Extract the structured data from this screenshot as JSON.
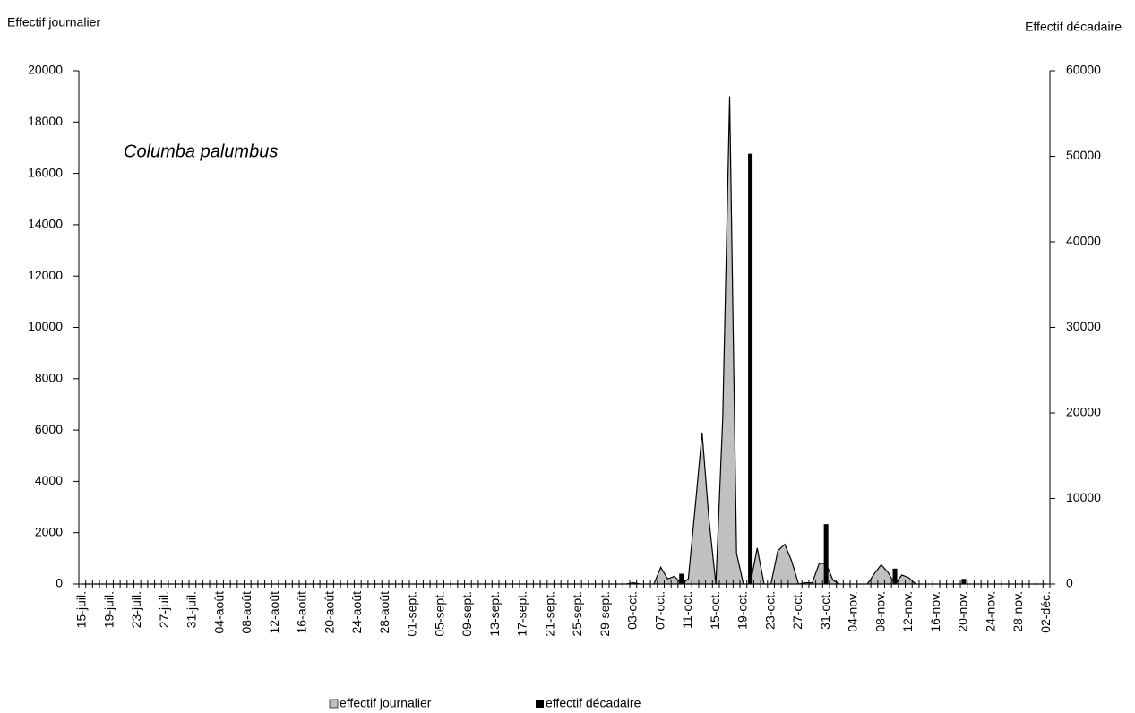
{
  "chart_data": {
    "type": "area-bar",
    "ylabel": "Effectif journalier",
    "y2label": "Effectif décadaire",
    "annotation": "Columba palumbus",
    "categories": [
      "15-juil.",
      null,
      null,
      null,
      "19-juil.",
      null,
      null,
      null,
      "23-juil.",
      null,
      null,
      null,
      "27-juil.",
      null,
      null,
      null,
      "31-juil.",
      null,
      null,
      null,
      "04-août",
      null,
      null,
      null,
      "08-août",
      null,
      null,
      null,
      "12-août",
      null,
      null,
      null,
      "16-août",
      null,
      null,
      null,
      "20-août",
      null,
      null,
      null,
      "24-août",
      null,
      null,
      null,
      "28-août",
      null,
      null,
      null,
      "01-sept.",
      null,
      null,
      null,
      "05-sept.",
      null,
      null,
      null,
      "09-sept.",
      null,
      null,
      null,
      "13-sept.",
      null,
      null,
      null,
      "17-sept.",
      null,
      null,
      null,
      "21-sept.",
      null,
      null,
      null,
      "25-sept.",
      null,
      null,
      null,
      "29-sept.",
      null,
      null,
      null,
      "03-oct.",
      null,
      null,
      null,
      "07-oct.",
      null,
      null,
      null,
      "11-oct.",
      null,
      null,
      null,
      "15-oct.",
      null,
      null,
      null,
      "19-oct.",
      null,
      null,
      null,
      "23-oct.",
      null,
      null,
      null,
      "27-oct.",
      null,
      null,
      null,
      "31-oct.",
      null,
      null,
      null,
      "04-nov.",
      null,
      null,
      null,
      "08-nov.",
      null,
      null,
      null,
      "12-nov.",
      null,
      null,
      null,
      "16-nov.",
      null,
      null,
      null,
      "20-nov.",
      null,
      null,
      null,
      "24-nov.",
      null,
      null,
      null,
      "28-nov.",
      null,
      null,
      null,
      "02-déc."
    ],
    "series": [
      {
        "name": "effectif journalier",
        "kind": "area",
        "color": "#c0c0c0",
        "values": [
          0,
          0,
          0,
          0,
          0,
          0,
          0,
          0,
          0,
          0,
          0,
          0,
          0,
          0,
          0,
          0,
          0,
          0,
          0,
          0,
          0,
          0,
          0,
          0,
          0,
          0,
          0,
          0,
          0,
          0,
          0,
          0,
          0,
          0,
          0,
          0,
          0,
          0,
          0,
          0,
          0,
          0,
          0,
          0,
          0,
          0,
          0,
          0,
          0,
          0,
          0,
          0,
          0,
          0,
          0,
          0,
          0,
          0,
          0,
          0,
          0,
          0,
          0,
          0,
          0,
          0,
          0,
          0,
          0,
          0,
          0,
          0,
          0,
          0,
          0,
          0,
          0,
          0,
          0,
          0,
          50,
          0,
          0,
          0,
          650,
          200,
          300,
          0,
          200,
          3000,
          5900,
          2500,
          0,
          6500,
          19000,
          1200,
          0,
          0,
          1400,
          0,
          0,
          1300,
          1550,
          900,
          0,
          50,
          50,
          800,
          800,
          150,
          0,
          0,
          0,
          0,
          0,
          400,
          750,
          450,
          0,
          350,
          250,
          0,
          0,
          0,
          0,
          0,
          0,
          0,
          0,
          0,
          0,
          0,
          0,
          0,
          0,
          0,
          0,
          0,
          0,
          0,
          0
        ]
      },
      {
        "name": "effectif décadaire",
        "kind": "bar",
        "axis": "y2",
        "color": "#000000",
        "values": [
          null,
          null,
          null,
          null,
          null,
          null,
          null,
          null,
          null,
          null,
          null,
          null,
          null,
          null,
          null,
          null,
          null,
          null,
          null,
          null,
          null,
          null,
          null,
          null,
          null,
          null,
          null,
          null,
          null,
          null,
          null,
          null,
          null,
          null,
          null,
          null,
          null,
          null,
          null,
          null,
          null,
          null,
          null,
          null,
          null,
          null,
          null,
          null,
          null,
          null,
          null,
          null,
          null,
          null,
          null,
          null,
          null,
          null,
          null,
          null,
          null,
          null,
          null,
          null,
          null,
          null,
          null,
          null,
          null,
          null,
          null,
          null,
          null,
          null,
          null,
          null,
          null,
          null,
          null,
          null,
          null,
          null,
          null,
          null,
          null,
          null,
          null,
          1200,
          null,
          null,
          null,
          null,
          null,
          null,
          null,
          null,
          null,
          50300,
          null,
          null,
          null,
          null,
          null,
          null,
          null,
          null,
          null,
          null,
          7000,
          null,
          null,
          null,
          null,
          null,
          null,
          null,
          null,
          null,
          1800,
          null,
          null,
          null,
          null,
          null,
          null,
          null,
          null,
          null,
          600,
          null,
          null,
          null,
          null,
          null,
          null,
          null,
          null,
          null,
          null,
          null,
          null
        ]
      }
    ],
    "ylim": [
      0,
      20000
    ],
    "yticks": [
      0,
      2000,
      4000,
      6000,
      8000,
      10000,
      12000,
      14000,
      16000,
      18000,
      20000
    ],
    "y2lim": [
      0,
      60000
    ],
    "y2ticks": [
      0,
      10000,
      20000,
      30000,
      40000,
      50000,
      60000
    ],
    "legend": "bottom"
  }
}
